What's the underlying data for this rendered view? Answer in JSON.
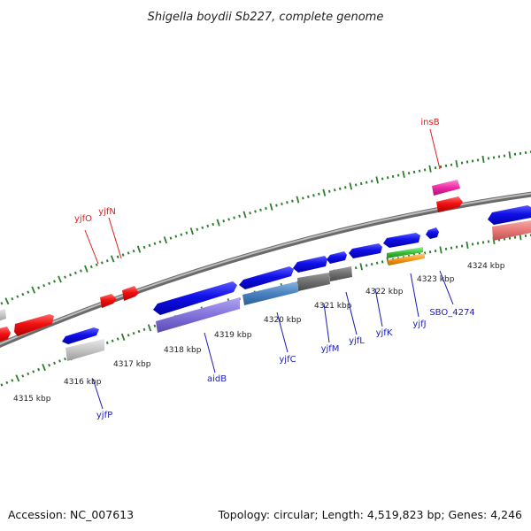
{
  "title": "Shigella boydii Sb227, complete genome",
  "footer": {
    "accession": "Accession: NC_007613",
    "summary": "Topology: circular; Length: 4,519,823 bp; Genes: 4,246"
  },
  "colors": {
    "backbone": "#8a8a8a",
    "ticks": "#2f7d2f",
    "forward_label": "#dd1f1f",
    "reverse_label": "#1a1ab8"
  },
  "scale_labels": [
    "4315 kbp",
    "4316 kbp",
    "4317 kbp",
    "4318 kbp",
    "4319 kbp",
    "4320 kbp",
    "4321 kbp",
    "4322 kbp",
    "4323 kbp",
    "4324 kbp"
  ],
  "gene_labels": {
    "forward": [
      "yjfO",
      "yjfN",
      "insB"
    ],
    "reverse": [
      "yjfP",
      "aidB",
      "yjfC",
      "yjfM",
      "yjfL",
      "yjfK",
      "yjfJ",
      "SBO_4274"
    ]
  }
}
